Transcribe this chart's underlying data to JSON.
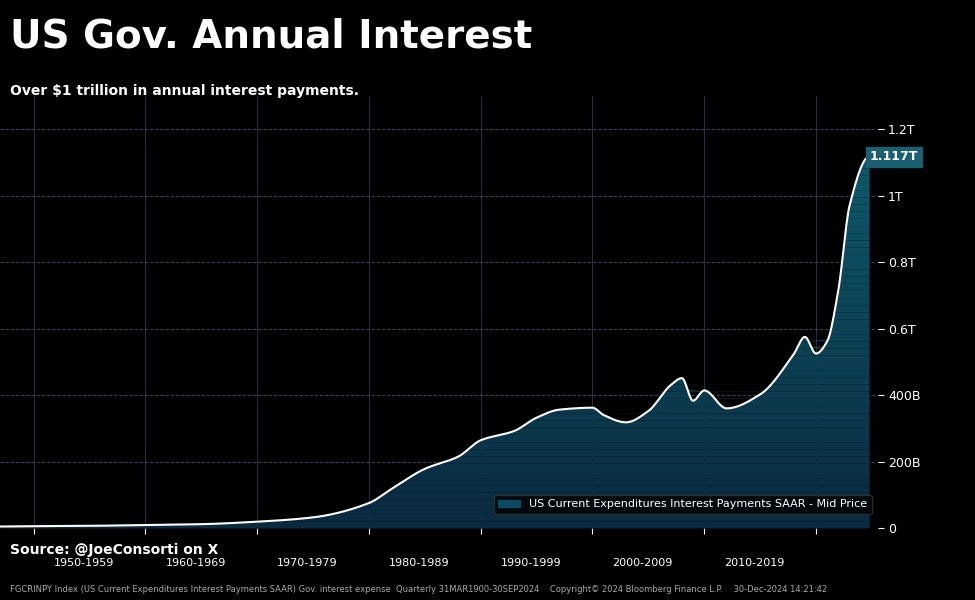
{
  "title": "US Gov. Annual Interest",
  "subtitle": "Over $1 trillion in annual interest payments.",
  "source_line": "Source: @JoeConsorti on X",
  "footer_line": "FGCRINPY Index (US Current Expenditures Interest Payments SAAR) Gov. interest expense  Quarterly 31MAR1900-30SEP2024    Copyright© 2024 Bloomberg Finance L.P.    30-Dec-2024 14:21:42",
  "legend_label": "US Current Expenditures Interest Payments SAAR - Mid Price",
  "annotation_value": "1.117T",
  "ytick_labels": [
    "0",
    "200B",
    "400B",
    "0.6T",
    "0.8T",
    "1T",
    "1.2T"
  ],
  "ytick_values": [
    0,
    200000000000.0,
    400000000000.0,
    600000000000.0,
    800000000000.0,
    1000000000000.0,
    1200000000000.0
  ],
  "xtick_labels": [
    "1950-1959",
    "1960-1969",
    "1970-1979",
    "1980-1989",
    "1990-1999",
    "2000-2009",
    "2010-2019"
  ],
  "background_color": "#000000",
  "fill_color_top": "#2a9d8f",
  "fill_color_bottom": "#0a2a40",
  "line_color": "#ffffff",
  "grid_color": "#333355",
  "title_color": "#ffffff",
  "subtitle_color": "#ffffff",
  "annotation_bg": "#1a5a6a",
  "ylim": [
    0,
    1300000000000.0
  ]
}
